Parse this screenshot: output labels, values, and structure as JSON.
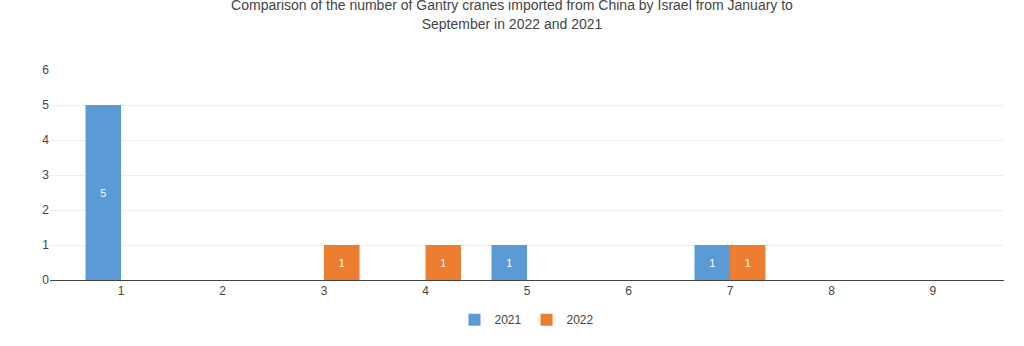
{
  "chart_data": {
    "type": "bar",
    "title": "Comparison of the number of Gantry cranes imported from China by Israel from January to\nSeptember in 2022 and 2021",
    "x": [
      1,
      2,
      3,
      4,
      5,
      6,
      7,
      8,
      9
    ],
    "series": [
      {
        "name": "2021",
        "color": "#5b9bd5",
        "values": [
          5,
          0,
          0,
          0,
          1,
          0,
          1,
          0,
          0
        ]
      },
      {
        "name": "2022",
        "color": "#ed7d31",
        "values": [
          0,
          0,
          1,
          1,
          0,
          0,
          1,
          0,
          0
        ]
      }
    ],
    "xlim": [
      0.3,
      9.7
    ],
    "xticks": [
      1,
      2,
      3,
      4,
      5,
      6,
      7,
      8,
      9
    ],
    "ylim": [
      0,
      6
    ],
    "yticks": [
      0,
      1,
      2,
      3,
      4,
      5,
      6
    ],
    "grid": true,
    "legend": "bottom",
    "data_labels": true
  }
}
